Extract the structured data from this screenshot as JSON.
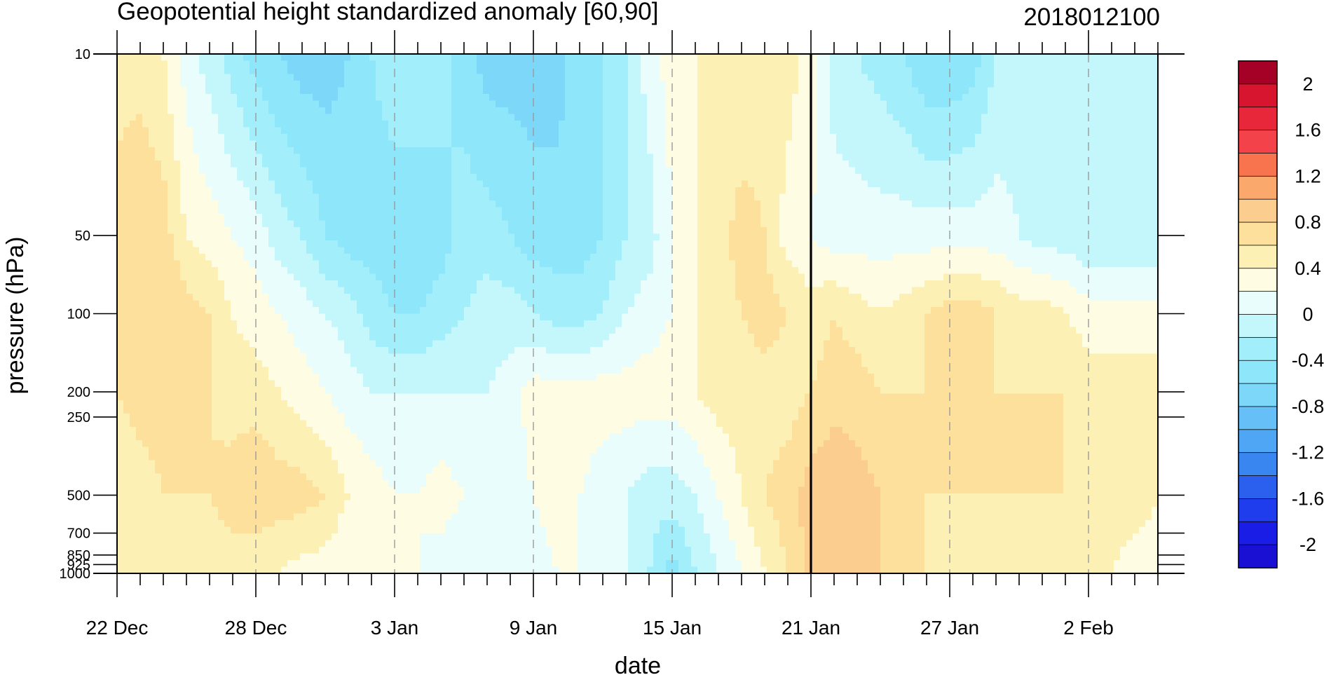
{
  "chart_data": {
    "type": "heatmap",
    "subtype": "filled-contour",
    "title": "Geopotential height standardized anomaly [60,90]",
    "subtitle": "2018012100",
    "xlabel": "date",
    "ylabel": "pressure (hPa)",
    "x_ticks": [
      "22 Dec",
      "28 Dec",
      "3 Jan",
      "9 Jan",
      "15 Jan",
      "21 Jan",
      "27 Jan",
      "2 Feb"
    ],
    "x_tick_days": [
      0,
      6,
      12,
      18,
      24,
      30,
      36,
      42
    ],
    "x_range_days": [
      0,
      45
    ],
    "y_scale": "log",
    "y_ticks": [
      "10",
      "50",
      "100",
      "200",
      "250",
      "500",
      "700",
      "850",
      "925",
      "1000"
    ],
    "y_tick_values": [
      10,
      50,
      100,
      200,
      250,
      500,
      700,
      850,
      925,
      1000
    ],
    "y_range": [
      10,
      1000
    ],
    "reference_line_day": 30,
    "grid": "dashed vertical lines at x ticks",
    "colorbar": {
      "placement": "right",
      "labels": [
        "2",
        "1.6",
        "1.2",
        "0.8",
        "0.4",
        "0",
        "-0.4",
        "-0.8",
        "-1.2",
        "-1.6",
        "-2"
      ],
      "colors": [
        "#a50026",
        "#d7152f",
        "#e8283a",
        "#f3424a",
        "#f7744f",
        "#fba86d",
        "#fbcd8f",
        "#fde09c",
        "#fdf0b4",
        "#fefce2",
        "#e9fdfd",
        "#c3f7fb",
        "#a2eefb",
        "#8ee6fb",
        "#7cd7f8",
        "#66bff6",
        "#4ea6f4",
        "#3a86f1",
        "#2b60ee",
        "#1f3ced",
        "#1a1de6",
        "#1a10d4"
      ]
    },
    "x_days": [
      0,
      1,
      2,
      3,
      4,
      5,
      6,
      7,
      8,
      9,
      10,
      11,
      12,
      13,
      14,
      15,
      16,
      17,
      18,
      19,
      20,
      21,
      22,
      23,
      24,
      25,
      26,
      27,
      28,
      29,
      30,
      31,
      32,
      33,
      34,
      35,
      36,
      37,
      38,
      39,
      40,
      41,
      42,
      43,
      44,
      45
    ],
    "levels_hpa": [
      10,
      50,
      100,
      200,
      500,
      1000
    ],
    "values": [
      [
        0.5,
        0.5,
        0.4,
        0.1,
        -0.1,
        -0.3,
        -0.5,
        -0.6,
        -0.7,
        -0.7,
        -0.6,
        -0.4,
        -0.3,
        -0.2,
        -0.3,
        -0.5,
        -0.7,
        -0.7,
        -0.7,
        -0.7,
        -0.5,
        -0.4,
        -0.2,
        0.1,
        0.3,
        0.4,
        0.4,
        0.4,
        0.5,
        0.5,
        0.3,
        -0.1,
        -0.2,
        -0.3,
        -0.4,
        -0.6,
        -0.6,
        -0.5,
        -0.2,
        -0.1,
        -0.1,
        -0.1,
        -0.1,
        -0.1,
        -0.1,
        -0.1
      ],
      [
        0.7,
        0.8,
        0.7,
        0.4,
        0.3,
        0.2,
        0.1,
        -0.1,
        -0.2,
        -0.4,
        -0.5,
        -0.5,
        -0.5,
        -0.6,
        -0.5,
        -0.3,
        -0.3,
        -0.4,
        -0.5,
        -0.5,
        -0.5,
        -0.4,
        -0.2,
        -0.1,
        0.2,
        0.4,
        0.5,
        0.7,
        0.6,
        0.3,
        0.2,
        0.1,
        0.1,
        0.1,
        0.1,
        0.1,
        0.1,
        0.1,
        0.1,
        0.0,
        -0.1,
        -0.1,
        -0.2,
        -0.2,
        -0.2,
        -0.2
      ],
      [
        0.7,
        0.8,
        0.8,
        0.7,
        0.6,
        0.4,
        0.3,
        0.2,
        0.1,
        0.0,
        -0.1,
        -0.3,
        -0.4,
        -0.4,
        -0.3,
        -0.2,
        -0.1,
        -0.1,
        -0.2,
        -0.3,
        -0.3,
        -0.2,
        0.0,
        0.1,
        0.2,
        0.4,
        0.5,
        0.6,
        0.7,
        0.6,
        0.5,
        0.6,
        0.5,
        0.4,
        0.5,
        0.6,
        0.7,
        0.7,
        0.6,
        0.5,
        0.5,
        0.4,
        0.3,
        0.3,
        0.3,
        0.3
      ],
      [
        0.6,
        0.7,
        0.7,
        0.6,
        0.6,
        0.5,
        0.5,
        0.4,
        0.3,
        0.2,
        0.1,
        0.0,
        0.0,
        0.0,
        0.0,
        0.0,
        0.0,
        0.1,
        0.3,
        0.3,
        0.3,
        0.3,
        0.3,
        0.3,
        0.3,
        0.4,
        0.5,
        0.5,
        0.5,
        0.5,
        0.6,
        0.7,
        0.7,
        0.6,
        0.6,
        0.6,
        0.7,
        0.7,
        0.6,
        0.6,
        0.6,
        0.6,
        0.5,
        0.5,
        0.5,
        0.5
      ],
      [
        0.4,
        0.5,
        0.6,
        0.6,
        0.6,
        0.7,
        0.8,
        0.7,
        0.7,
        0.6,
        0.4,
        0.3,
        0.2,
        0.2,
        0.3,
        0.2,
        0.1,
        0.1,
        0.2,
        0.3,
        0.2,
        0.1,
        0.0,
        -0.1,
        -0.1,
        0.0,
        0.2,
        0.4,
        0.6,
        0.7,
        0.9,
        1.0,
        0.9,
        0.8,
        0.7,
        0.6,
        0.6,
        0.6,
        0.6,
        0.6,
        0.6,
        0.6,
        0.6,
        0.5,
        0.5,
        0.4
      ],
      [
        0.4,
        0.4,
        0.5,
        0.5,
        0.5,
        0.5,
        0.4,
        0.4,
        0.3,
        0.3,
        0.2,
        0.2,
        0.2,
        0.2,
        0.1,
        0.0,
        0.0,
        0.0,
        0.1,
        0.2,
        0.2,
        0.1,
        0.0,
        -0.2,
        -0.5,
        -0.2,
        0.0,
        0.2,
        0.4,
        0.6,
        0.9,
        1.0,
        0.9,
        0.8,
        0.7,
        0.6,
        0.5,
        0.5,
        0.5,
        0.5,
        0.4,
        0.4,
        0.4,
        0.4,
        0.3,
        0.3
      ]
    ]
  }
}
